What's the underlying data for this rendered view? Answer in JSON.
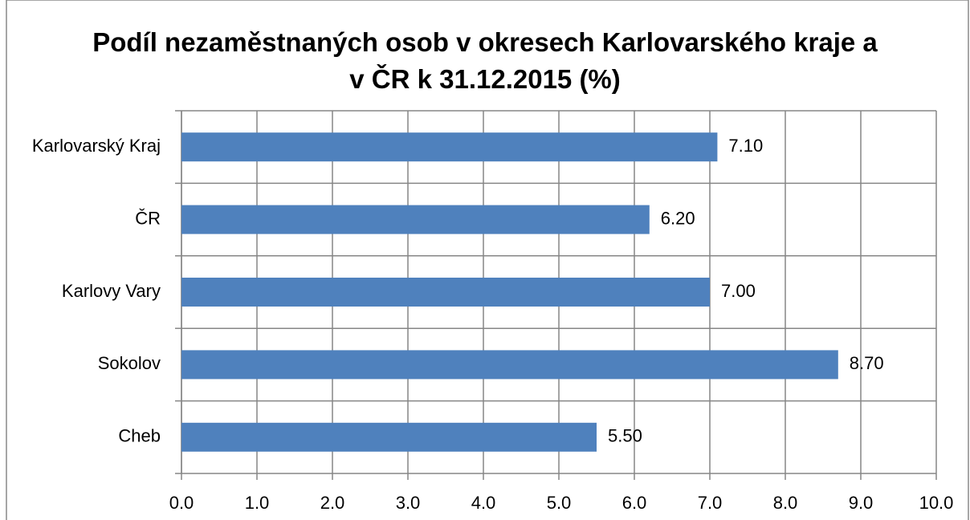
{
  "chart_data": {
    "type": "bar",
    "orientation": "horizontal",
    "title": "Podíl nezaměstnaných osob v okresech Karlovarského kraje a v ČR k 31.12.2015 (%)",
    "categories": [
      "Karlovarský Kraj",
      "ČR",
      "Karlovy Vary",
      "Sokolov",
      "Cheb"
    ],
    "values": [
      7.1,
      6.2,
      7.0,
      8.7,
      5.5
    ],
    "value_labels": [
      "7.10",
      "6.20",
      "7.00",
      "8.70",
      "5.50"
    ],
    "color": "#4f81bd",
    "xlim": [
      0,
      10
    ],
    "xticks": [
      {
        "value": 0,
        "label": "0.0"
      },
      {
        "value": 1,
        "label": "1.0"
      },
      {
        "value": 2,
        "label": "2.0"
      },
      {
        "value": 3,
        "label": "3.0"
      },
      {
        "value": 4,
        "label": "4.0"
      },
      {
        "value": 5,
        "label": "5.0"
      },
      {
        "value": 6,
        "label": "6.0"
      },
      {
        "value": 7,
        "label": "7.0"
      },
      {
        "value": 8,
        "label": "8.0"
      },
      {
        "value": 9,
        "label": "9.0"
      },
      {
        "value": 10,
        "label": "10.0"
      }
    ],
    "grid": true
  }
}
